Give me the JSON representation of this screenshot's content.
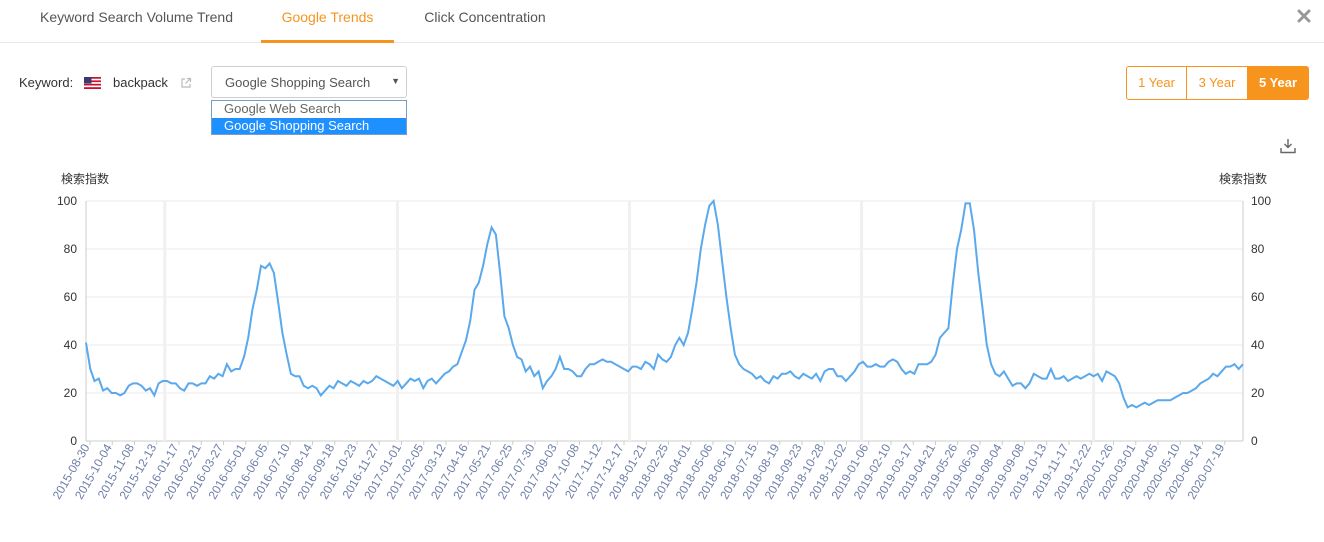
{
  "tabs": [
    {
      "label": "Keyword Search Volume Trend",
      "active": false
    },
    {
      "label": "Google Trends",
      "active": true
    },
    {
      "label": "Click Concentration",
      "active": false
    }
  ],
  "keyword": {
    "label": "Keyword:",
    "country_flag": "us-flag-icon",
    "value": "backpack"
  },
  "source_select": {
    "selected": "Google Shopping Search",
    "options": [
      "Google Web Search",
      "Google Shopping Search"
    ],
    "highlighted_option": "Google Shopping Search"
  },
  "range_buttons": [
    {
      "label": "1 Year",
      "active": false
    },
    {
      "label": "3 Year",
      "active": false
    },
    {
      "label": "5 Year",
      "active": true
    }
  ],
  "icons": {
    "close": "close-icon",
    "share": "external-link-icon",
    "download": "download-icon"
  },
  "colors": {
    "accent": "#f7941d",
    "line": "#5aa9ec",
    "select_highlight": "#1e90ff"
  },
  "chart_data": {
    "type": "line",
    "ylabel_left": "検索指数",
    "ylabel_right": "検索指数",
    "ylim": [
      0,
      100
    ],
    "yticks": [
      0,
      20,
      40,
      60,
      80,
      100
    ],
    "grid": true,
    "xtick_labels": [
      "2015-08-30",
      "2015-10-04",
      "2015-11-08",
      "2015-12-13",
      "2016-01-17",
      "2016-02-21",
      "2016-03-27",
      "2016-05-01",
      "2016-06-05",
      "2016-07-10",
      "2016-08-14",
      "2016-09-18",
      "2016-10-23",
      "2016-11-27",
      "2017-01-01",
      "2017-02-05",
      "2017-03-12",
      "2017-04-16",
      "2017-05-21",
      "2017-06-25",
      "2017-07-30",
      "2017-09-03",
      "2017-10-08",
      "2017-11-12",
      "2017-12-17",
      "2018-01-21",
      "2018-02-25",
      "2018-04-01",
      "2018-05-06",
      "2018-06-10",
      "2018-07-15",
      "2018-08-19",
      "2018-09-23",
      "2018-10-28",
      "2018-12-02",
      "2019-01-06",
      "2019-02-10",
      "2019-03-17",
      "2019-04-21",
      "2019-05-26",
      "2019-06-30",
      "2019-08-04",
      "2019-09-08",
      "2019-10-13",
      "2019-11-17",
      "2019-12-22",
      "2020-01-26",
      "2020-03-01",
      "2020-04-05",
      "2020-05-10",
      "2020-06-14",
      "2020-07-19"
    ],
    "series": [
      {
        "values": [
          41,
          30,
          25,
          26,
          21,
          22,
          20,
          20,
          19,
          20,
          23,
          24,
          24,
          23,
          21,
          22,
          19,
          24,
          25,
          25,
          24,
          24,
          22,
          21,
          24,
          24,
          23,
          24,
          24,
          27,
          26,
          28,
          27,
          32,
          29,
          30,
          30,
          35,
          43,
          55,
          63,
          73,
          72,
          74,
          70,
          58,
          45,
          36,
          28,
          27,
          27,
          23,
          22,
          23,
          22,
          19,
          21,
          23,
          22,
          25,
          24,
          23,
          25,
          24,
          23,
          25,
          24,
          25,
          27,
          26,
          25,
          24,
          23,
          25,
          22,
          24,
          26,
          25,
          26,
          22,
          25,
          26,
          24,
          26,
          28,
          29,
          31,
          32,
          37,
          42,
          50,
          63,
          66,
          73,
          82,
          89,
          86,
          70,
          52,
          47,
          40,
          35,
          34,
          29,
          31,
          27,
          29,
          22,
          25,
          27,
          30,
          35,
          30,
          30,
          29,
          27,
          27,
          30,
          32,
          32,
          33,
          34,
          33,
          33,
          32,
          31,
          30,
          29,
          31,
          31,
          30,
          33,
          32,
          30,
          36,
          34,
          33,
          35,
          40,
          43,
          40,
          45,
          55,
          66,
          80,
          90,
          98,
          100,
          90,
          75,
          60,
          47,
          36,
          32,
          30,
          29,
          28,
          26,
          27,
          25,
          24,
          27,
          26,
          28,
          28,
          29,
          27,
          26,
          28,
          27,
          26,
          28,
          25,
          29,
          30,
          30,
          27,
          27,
          25,
          27,
          29,
          32,
          33,
          31,
          31,
          32,
          31,
          31,
          33,
          34,
          33,
          30,
          28,
          29,
          28,
          32,
          32,
          32,
          33,
          36,
          43,
          45,
          47,
          65,
          80,
          88,
          99,
          99,
          88,
          70,
          55,
          40,
          32,
          28,
          27,
          29,
          26,
          23,
          24,
          24,
          22,
          24,
          28,
          27,
          26,
          26,
          30,
          26,
          26,
          27,
          25,
          26,
          27,
          26,
          27,
          28,
          27,
          28,
          25,
          29,
          28,
          27,
          24,
          18,
          14,
          15,
          14,
          15,
          16,
          15,
          16,
          17,
          17,
          17,
          17,
          18,
          19,
          20,
          20,
          21,
          22,
          24,
          25,
          26,
          28,
          27,
          29,
          31,
          31,
          32,
          30,
          32
        ]
      }
    ]
  }
}
